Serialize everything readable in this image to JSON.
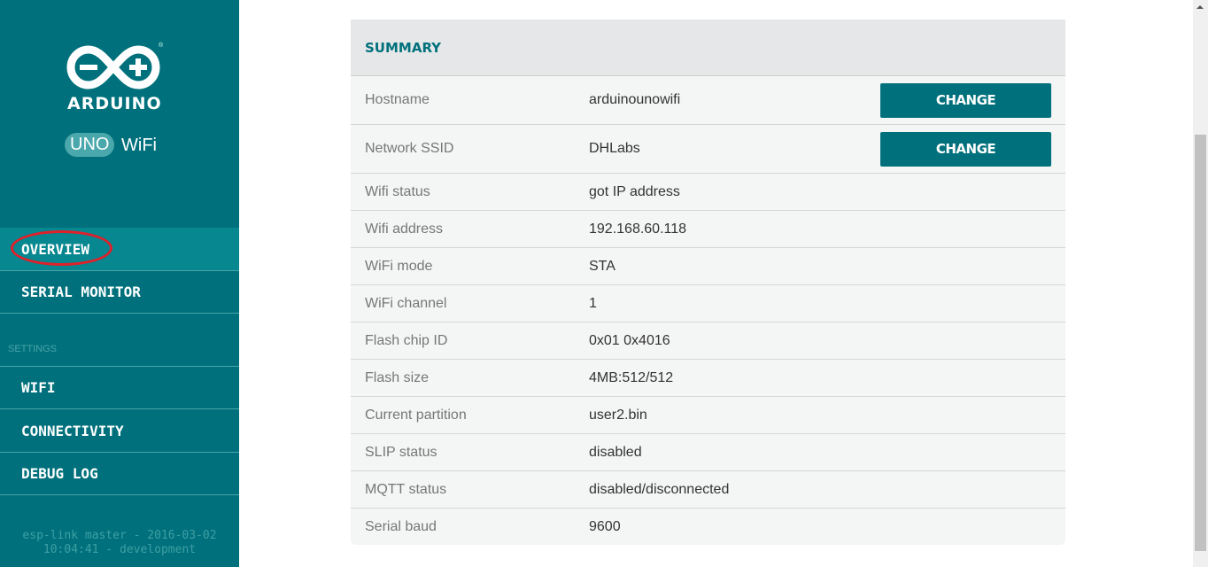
{
  "sidebar": {
    "logo_text": "ARDUINO",
    "logo_mark": "®",
    "badge": "UNO",
    "badge_suffix": "WiFi",
    "items": [
      {
        "label": "OVERVIEW",
        "active": true
      },
      {
        "label": "SERIAL MONITOR"
      }
    ],
    "settings_label": "SETTINGS",
    "settings_items": [
      {
        "label": "WIFI"
      },
      {
        "label": "CONNECTIVITY"
      },
      {
        "label": "DEBUG LOG"
      }
    ],
    "footer_line1": "esp-link master - 2016-03-02",
    "footer_line2": "10:04:41 - development"
  },
  "summary": {
    "title": "SUMMARY",
    "rows": [
      {
        "label": "Hostname",
        "value": "arduinounowifi",
        "button": "CHANGE"
      },
      {
        "label": "Network SSID",
        "value": "DHLabs",
        "button": "CHANGE"
      },
      {
        "label": "Wifi status",
        "value": "got IP address"
      },
      {
        "label": "Wifi address",
        "value": "192.168.60.118"
      },
      {
        "label": "WiFi mode",
        "value": "STA"
      },
      {
        "label": "WiFi channel",
        "value": "1"
      },
      {
        "label": "Flash chip ID",
        "value": "0x01 0x4016"
      },
      {
        "label": "Flash size",
        "value": "4MB:512/512"
      },
      {
        "label": "Current partition",
        "value": "user2.bin"
      },
      {
        "label": "SLIP status",
        "value": "disabled"
      },
      {
        "label": "MQTT status",
        "value": "disabled/disconnected"
      },
      {
        "label": "Serial baud",
        "value": "9600"
      }
    ]
  },
  "colors": {
    "primary": "#00717c",
    "active": "#07878f",
    "highlight": "#e0202a"
  }
}
